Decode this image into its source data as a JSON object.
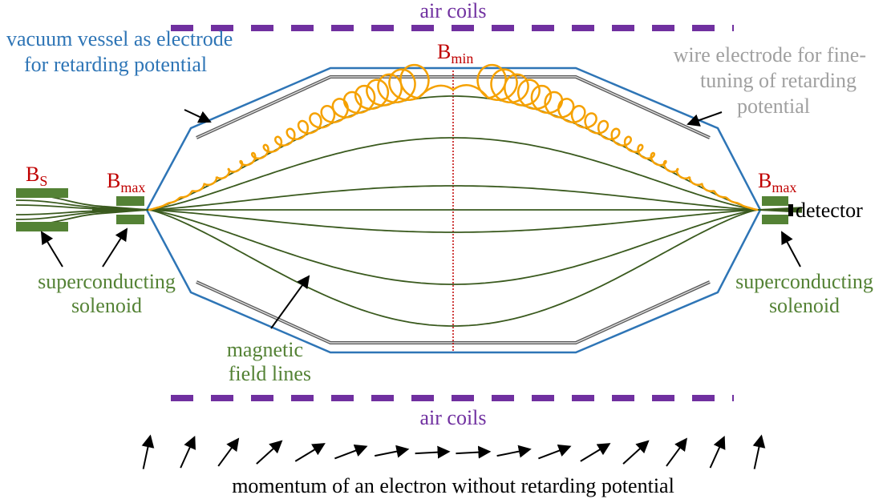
{
  "air_coils_top": "air coils",
  "air_coils_bottom": "air coils",
  "b_source": {
    "symbol": "B",
    "subscript": "S"
  },
  "b_max_left": {
    "symbol": "B",
    "subscript": "max"
  },
  "b_max_right": {
    "symbol": "B",
    "subscript": "max"
  },
  "b_min": {
    "symbol": "B",
    "subscript": "min"
  },
  "vacuum_vessel": [
    "vacuum vessel as electrode",
    "for retarding potential"
  ],
  "wire_electrode": [
    "wire electrode for fine-",
    "tuning of retarding",
    "potential"
  ],
  "solenoid_left": [
    "superconducting",
    "solenoid"
  ],
  "solenoid_right": [
    "superconducting",
    "solenoid"
  ],
  "field_lines": [
    "magnetic",
    "field lines"
  ],
  "detector": "detector",
  "caption": "momentum of an electron without retarding potential"
}
